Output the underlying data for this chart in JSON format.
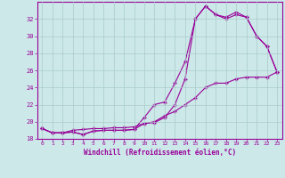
{
  "xlabel": "Windchill (Refroidissement éolien,°C)",
  "x": [
    0,
    1,
    2,
    3,
    4,
    5,
    6,
    7,
    8,
    9,
    10,
    11,
    12,
    13,
    14,
    15,
    16,
    17,
    18,
    19,
    20,
    21,
    22,
    23
  ],
  "line1": [
    19.2,
    18.7,
    18.7,
    18.8,
    18.5,
    18.9,
    19.0,
    19.0,
    19.0,
    19.1,
    20.5,
    22.0,
    22.3,
    24.5,
    27.0,
    32.0,
    33.5,
    32.5,
    32.0,
    32.5,
    32.2,
    30.0,
    28.8,
    25.8
  ],
  "line2": [
    19.2,
    18.7,
    18.7,
    18.8,
    18.5,
    18.9,
    19.0,
    19.0,
    19.0,
    19.1,
    19.8,
    19.9,
    20.5,
    22.0,
    25.0,
    32.0,
    33.5,
    32.5,
    32.2,
    32.8,
    32.2,
    30.0,
    28.8,
    25.8
  ],
  "line3": [
    19.2,
    18.7,
    18.7,
    19.0,
    19.1,
    19.2,
    19.2,
    19.3,
    19.3,
    19.4,
    19.8,
    20.0,
    20.7,
    21.2,
    22.0,
    22.8,
    24.0,
    24.5,
    24.5,
    25.0,
    25.2,
    25.2,
    25.2,
    25.8
  ],
  "line_color": "#990099",
  "marker": "+",
  "bg_color": "#cce8e8",
  "grid_color": "#aacccc",
  "ylim": [
    18,
    34
  ],
  "xlim": [
    -0.5,
    23.5
  ],
  "yticks": [
    18,
    20,
    22,
    24,
    26,
    28,
    30,
    32
  ],
  "xticks": [
    0,
    1,
    2,
    3,
    4,
    5,
    6,
    7,
    8,
    9,
    10,
    11,
    12,
    13,
    14,
    15,
    16,
    17,
    18,
    19,
    20,
    21,
    22,
    23
  ]
}
